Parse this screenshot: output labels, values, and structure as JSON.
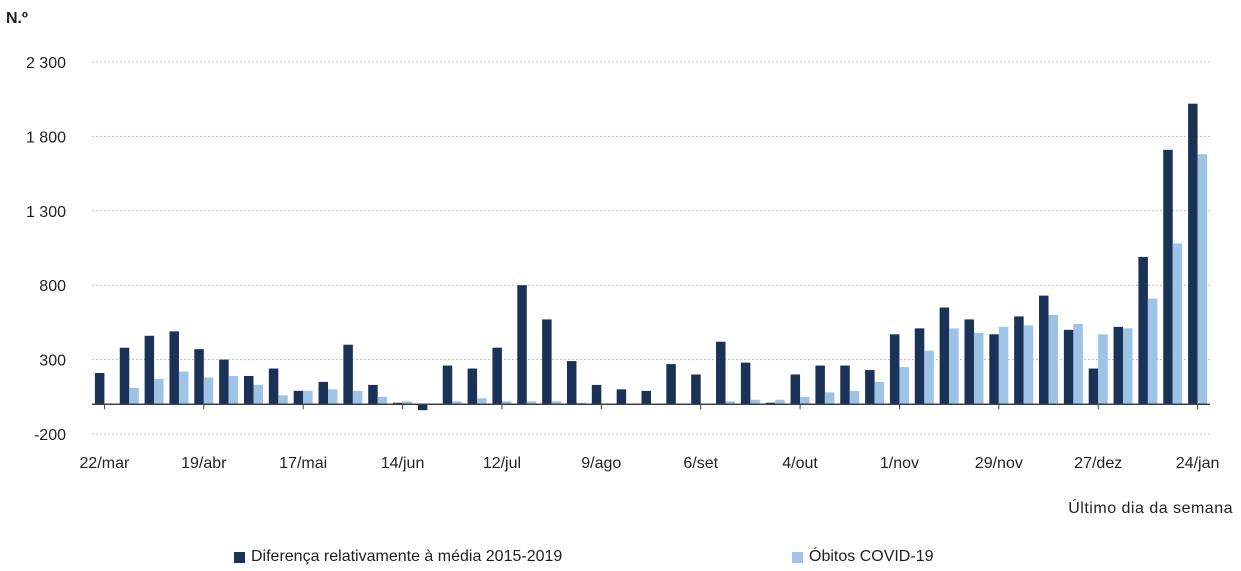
{
  "chart_data": {
    "type": "bar",
    "ylabel": "N.º",
    "xlabel": "Último dia da semana",
    "ylim": [
      -200,
      2300
    ],
    "yticks": [
      -200,
      300,
      800,
      1300,
      1800,
      2300
    ],
    "ytick_labels": [
      "-200",
      "300",
      "800",
      "1 300",
      "1 800",
      "2 300"
    ],
    "grid": true,
    "legend_position": "bottom",
    "x_tick_labels": [
      {
        "index": 0,
        "label": "22/mar"
      },
      {
        "index": 4,
        "label": "19/abr"
      },
      {
        "index": 8,
        "label": "17/mai"
      },
      {
        "index": 12,
        "label": "14/jun"
      },
      {
        "index": 16,
        "label": "12/jul"
      },
      {
        "index": 20,
        "label": "9/ago"
      },
      {
        "index": 24,
        "label": "6/set"
      },
      {
        "index": 28,
        "label": "4/out"
      },
      {
        "index": 32,
        "label": "1/nov"
      },
      {
        "index": 36,
        "label": "29/nov"
      },
      {
        "index": 40,
        "label": "27/dez"
      },
      {
        "index": 44,
        "label": "24/jan"
      }
    ],
    "series": [
      {
        "name": "Diferença relativamente à média 2015-2019",
        "color": "#1a3257",
        "values": [
          210,
          380,
          460,
          490,
          370,
          300,
          190,
          240,
          90,
          150,
          400,
          130,
          10,
          -40,
          260,
          240,
          380,
          800,
          570,
          290,
          130,
          100,
          90,
          270,
          200,
          420,
          280,
          10,
          200,
          260,
          260,
          230,
          470,
          510,
          650,
          570,
          470,
          590,
          730,
          500,
          240,
          520,
          990,
          1710,
          2020
        ]
      },
      {
        "name": "Óbitos COVID-19",
        "color": "#9dc3e6",
        "values": [
          0,
          110,
          170,
          220,
          180,
          190,
          130,
          60,
          90,
          100,
          90,
          50,
          20,
          0,
          20,
          40,
          20,
          20,
          20,
          10,
          0,
          0,
          0,
          0,
          0,
          20,
          30,
          30,
          50,
          80,
          90,
          150,
          250,
          360,
          510,
          480,
          520,
          530,
          600,
          540,
          470,
          510,
          710,
          1080,
          1680
        ]
      }
    ]
  }
}
